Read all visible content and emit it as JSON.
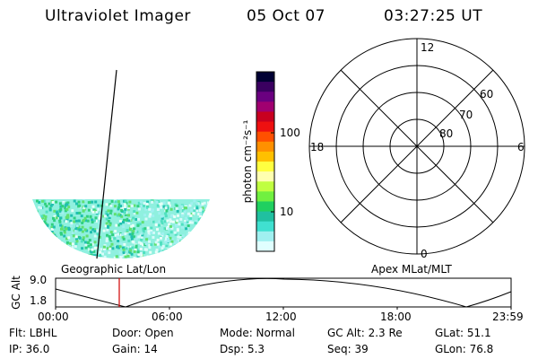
{
  "header": {
    "title": "Ultraviolet Imager",
    "date": "05 Oct 07",
    "time": "03:27:25 UT"
  },
  "image_panel": {
    "label": "Geographic Lat/Lon"
  },
  "colorbar": {
    "unit_label": "photon cm⁻²s⁻¹",
    "tick_labels": [
      "100",
      "10"
    ],
    "colors": [
      "#000033",
      "#3a0060",
      "#6a0080",
      "#a00070",
      "#c80020",
      "#ee1010",
      "#ff5000",
      "#ff9000",
      "#ffc000",
      "#ffff40",
      "#ffffb0",
      "#c0ff40",
      "#70f040",
      "#20d060",
      "#20c0a0",
      "#40e0d0",
      "#a0f0f0",
      "#e0ffff"
    ]
  },
  "polar_plot": {
    "label": "Apex MLat/MLT",
    "mlt_labels": {
      "top": "12",
      "left": "18",
      "right": "6",
      "bottom": "0"
    },
    "lat_labels": [
      "60",
      "70",
      "80"
    ]
  },
  "altitude_plot": {
    "ylabel": "GC Alt",
    "yticks": [
      "9.0",
      "1.8"
    ],
    "xticks": [
      "00:00",
      "06:00",
      "12:00",
      "18:00",
      "23:59"
    ],
    "marker_time": "03:27:25"
  },
  "info": {
    "flt": "Flt: LBHL",
    "door": "Door: Open",
    "mode": "Mode: Normal",
    "gc_alt": "GC Alt: 2.3 Re",
    "glat": "GLat:  51.1",
    "ip": "IP: 36.0",
    "gain": "Gain: 14",
    "dsp": "Dsp:    5.3",
    "seq": "Seq: 39",
    "glon": "GLon:  76.8"
  }
}
